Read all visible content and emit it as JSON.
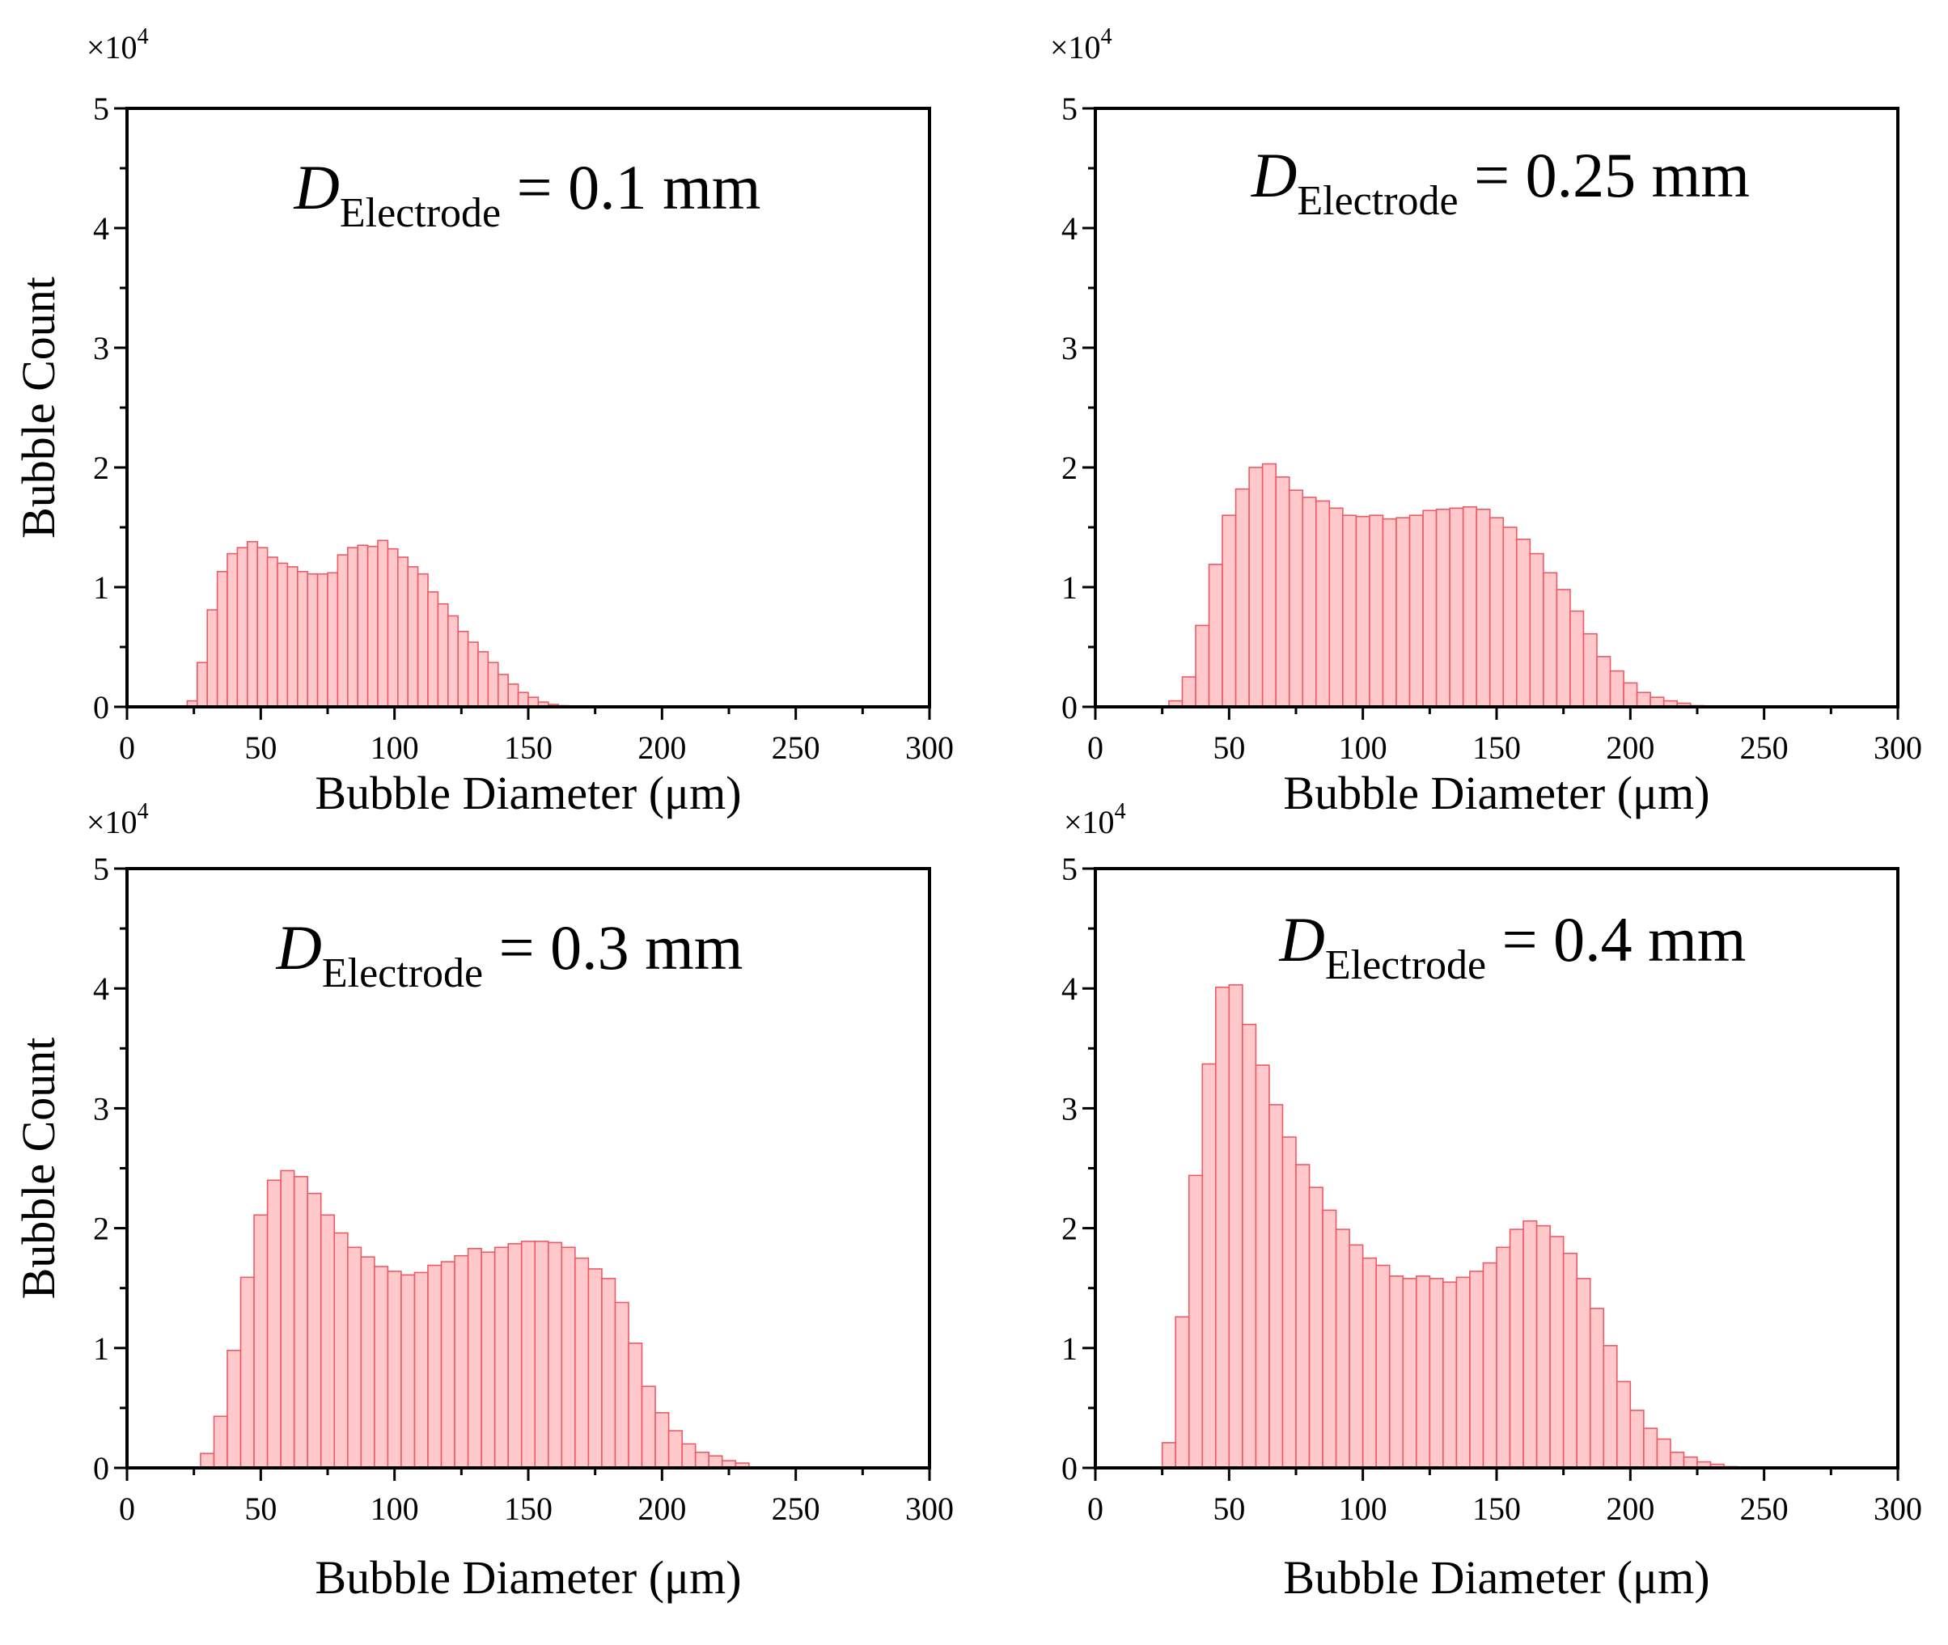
{
  "figure": {
    "multiplier_base": "×10",
    "multiplier_exp": "4",
    "xlabel": "Bubble Diameter (μm)",
    "ylabel": "Bubble Count",
    "bar_fill": "#ffc9cc",
    "bar_stroke": "#ee5a64"
  },
  "chart_data": [
    {
      "type": "bar",
      "title_sym": "D",
      "title_sub": "Electrode",
      "title_val": " = 0.1 mm",
      "xlabel": "Bubble Diameter (μm)",
      "ylabel": "Bubble Count",
      "ylabel_shown": true,
      "xlim": [
        0,
        300
      ],
      "ylim": [
        0,
        5
      ],
      "y_unit": "×10^4",
      "bin_width": 3.75,
      "bin_start": 22.5,
      "xticks": [
        "0",
        "50",
        "100",
        "150",
        "200",
        "250",
        "300"
      ],
      "yticks": [
        "0",
        "1",
        "2",
        "3",
        "4",
        "5"
      ],
      "values": [
        0.05,
        0.37,
        0.81,
        1.13,
        1.28,
        1.33,
        1.38,
        1.33,
        1.25,
        1.2,
        1.17,
        1.13,
        1.11,
        1.11,
        1.12,
        1.27,
        1.33,
        1.35,
        1.34,
        1.39,
        1.32,
        1.25,
        1.17,
        1.11,
        0.96,
        0.86,
        0.76,
        0.63,
        0.54,
        0.46,
        0.37,
        0.27,
        0.19,
        0.12,
        0.08,
        0.04,
        0.02,
        0.01
      ]
    },
    {
      "type": "bar",
      "title_sym": "D",
      "title_sub": "Electrode",
      "title_val": " = 0.25 mm",
      "xlabel": "Bubble Diameter (μm)",
      "ylabel": "Bubble Count",
      "ylabel_shown": false,
      "xlim": [
        0,
        300
      ],
      "ylim": [
        0,
        5
      ],
      "y_unit": "×10^4",
      "bin_width": 5,
      "bin_start": 27.5,
      "xticks": [
        "0",
        "50",
        "100",
        "150",
        "200",
        "250",
        "300"
      ],
      "yticks": [
        "0",
        "1",
        "2",
        "3",
        "4",
        "5"
      ],
      "values": [
        0.05,
        0.25,
        0.68,
        1.19,
        1.6,
        1.82,
        2.0,
        2.03,
        1.92,
        1.81,
        1.75,
        1.72,
        1.66,
        1.6,
        1.59,
        1.6,
        1.57,
        1.58,
        1.6,
        1.64,
        1.65,
        1.66,
        1.67,
        1.65,
        1.58,
        1.5,
        1.4,
        1.28,
        1.12,
        0.98,
        0.8,
        0.61,
        0.42,
        0.3,
        0.2,
        0.12,
        0.08,
        0.05,
        0.03,
        0.01
      ]
    },
    {
      "type": "bar",
      "title_sym": "D",
      "title_sub": "Electrode",
      "title_val": " = 0.3 mm",
      "xlabel": "Bubble Diameter (μm)",
      "ylabel": "Bubble Count",
      "ylabel_shown": true,
      "xlim": [
        0,
        300
      ],
      "ylim": [
        0,
        5
      ],
      "y_unit": "×10^4",
      "bin_width": 5,
      "bin_start": 27.5,
      "xticks": [
        "0",
        "50",
        "100",
        "150",
        "200",
        "250",
        "300"
      ],
      "yticks": [
        "0",
        "1",
        "2",
        "3",
        "4",
        "5"
      ],
      "values": [
        0.12,
        0.43,
        0.98,
        1.59,
        2.11,
        2.4,
        2.48,
        2.43,
        2.29,
        2.11,
        1.96,
        1.84,
        1.76,
        1.68,
        1.64,
        1.61,
        1.63,
        1.69,
        1.72,
        1.77,
        1.83,
        1.8,
        1.84,
        1.87,
        1.89,
        1.89,
        1.88,
        1.84,
        1.75,
        1.66,
        1.58,
        1.38,
        1.04,
        0.68,
        0.46,
        0.31,
        0.2,
        0.13,
        0.1,
        0.06,
        0.04
      ]
    },
    {
      "type": "bar",
      "title_sym": "D",
      "title_sub": "Electrode",
      "title_val": " = 0.4 mm",
      "xlabel": "Bubble Diameter (μm)",
      "ylabel": "Bubble Count",
      "ylabel_shown": false,
      "xlim": [
        0,
        300
      ],
      "ylim": [
        0,
        5
      ],
      "y_unit": "×10^4",
      "bin_width": 5,
      "bin_start": 25,
      "xticks": [
        "0",
        "50",
        "100",
        "150",
        "200",
        "250",
        "300"
      ],
      "yticks": [
        "0",
        "1",
        "2",
        "3",
        "4",
        "5"
      ],
      "values": [
        0.21,
        1.26,
        2.44,
        3.37,
        4.01,
        4.03,
        3.7,
        3.36,
        3.03,
        2.76,
        2.53,
        2.34,
        2.15,
        1.99,
        1.86,
        1.75,
        1.69,
        1.6,
        1.58,
        1.6,
        1.58,
        1.55,
        1.59,
        1.64,
        1.71,
        1.84,
        1.99,
        2.06,
        2.02,
        1.93,
        1.79,
        1.58,
        1.33,
        1.02,
        0.72,
        0.48,
        0.33,
        0.24,
        0.13,
        0.09,
        0.05,
        0.03,
        0.01
      ]
    }
  ]
}
